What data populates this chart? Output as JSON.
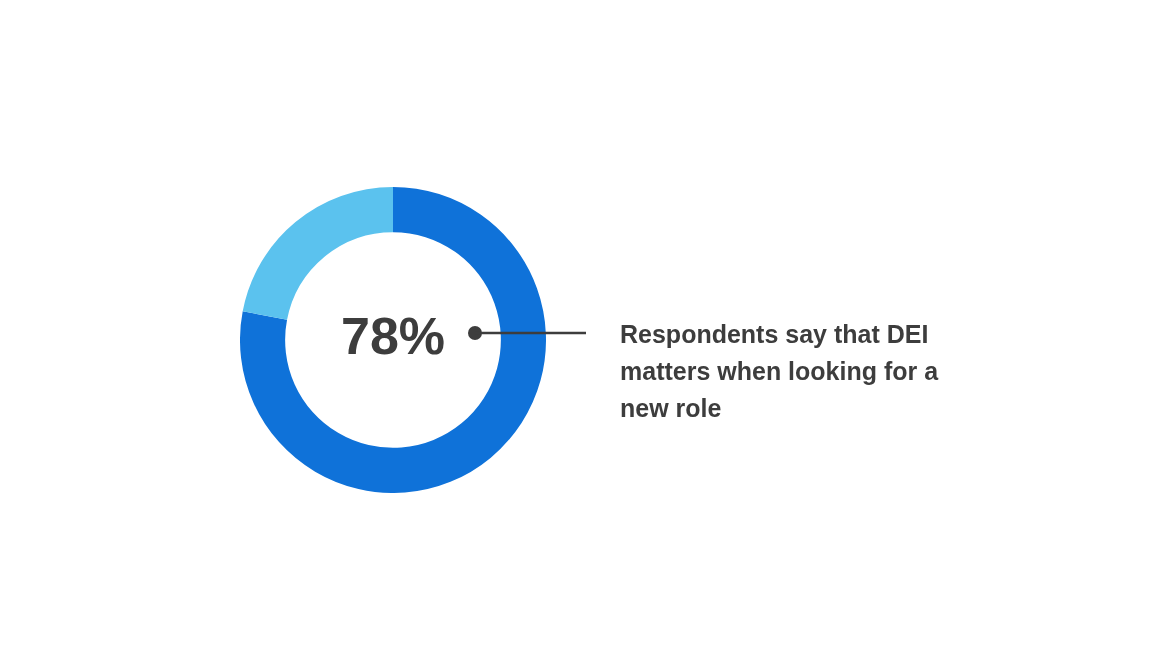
{
  "chart_data": {
    "type": "donut",
    "categories": [
      null,
      null
    ],
    "values": [
      78,
      22
    ],
    "colors": [
      "#0f72d9",
      "#5bc2ee"
    ],
    "value_labels": [
      "78%",
      null
    ],
    "annotations": [
      "Respondents say that DEI matters when looking for a new role"
    ]
  }
}
